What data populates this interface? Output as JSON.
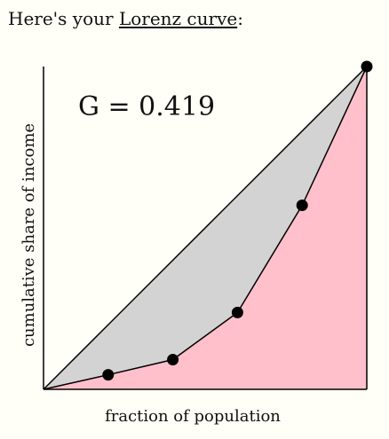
{
  "intro": {
    "prefix": "Here's your ",
    "link": "Lorenz curve",
    "suffix": ":"
  },
  "chart_data": {
    "type": "line",
    "title": "",
    "annotation": "G = 0.419",
    "xlabel": "fraction of population",
    "ylabel": "cumulative share of income",
    "xlim": [
      0,
      1
    ],
    "ylim": [
      0,
      1
    ],
    "grid": false,
    "series": [
      {
        "points": [
          {
            "x": 0.0,
            "y": 0.0
          },
          {
            "x": 0.2,
            "y": 0.045
          },
          {
            "x": 0.4,
            "y": 0.092
          },
          {
            "x": 0.6,
            "y": 0.238
          },
          {
            "x": 0.8,
            "y": 0.57
          },
          {
            "x": 1.0,
            "y": 1.0
          }
        ]
      }
    ],
    "equality_line": true,
    "colors": {
      "between_area": "#d3d3d3",
      "under_curve": "#ffc0cb",
      "stroke": "#000000",
      "marker": "#000000"
    }
  }
}
